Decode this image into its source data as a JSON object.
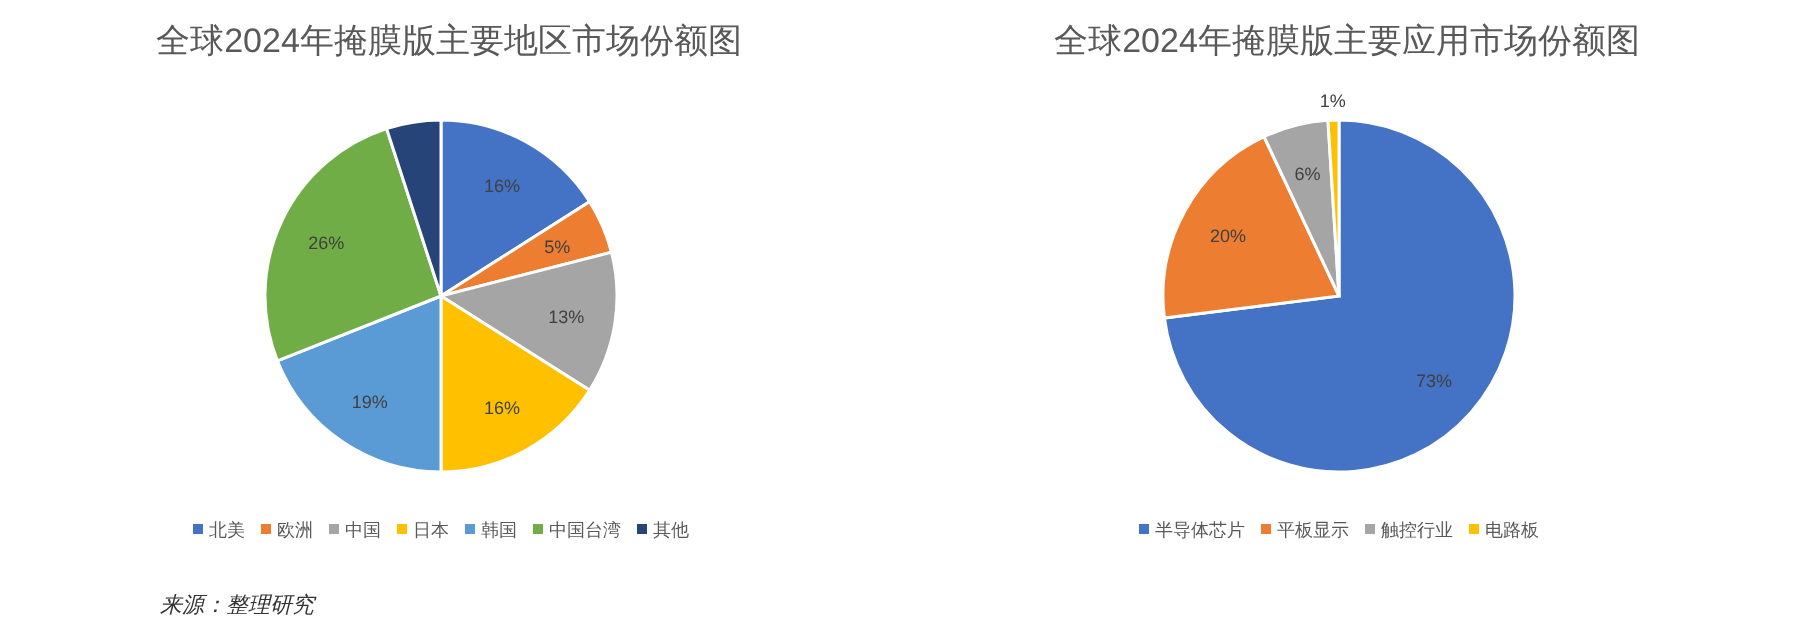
{
  "chart_data": [
    {
      "type": "pie",
      "title": "全球2024年掩膜版主要地区市场份额图",
      "categories": [
        "北美",
        "欧洲",
        "中国",
        "日本",
        "韩国",
        "中国台湾",
        "其他"
      ],
      "values": [
        16,
        5,
        13,
        16,
        19,
        26,
        5
      ],
      "colors": [
        "#4472c4",
        "#ed7d31",
        "#a5a5a5",
        "#ffc000",
        "#5b9bd5",
        "#70ad47",
        "#264478"
      ],
      "value_labels": [
        "16%",
        "5%",
        "13%",
        "16%",
        "19%",
        "26%",
        null
      ],
      "legend": "bottom",
      "annotations": [
        "来源：整理研究"
      ]
    },
    {
      "type": "pie",
      "title": "全球2024年掩膜版主要应用市场份额图",
      "categories": [
        "半导体芯片",
        "平板显示",
        "触控行业",
        "电路板"
      ],
      "values": [
        73,
        20,
        6,
        1
      ],
      "colors": [
        "#4472c4",
        "#ed7d31",
        "#a5a5a5",
        "#ffc000"
      ],
      "value_labels": [
        "73%",
        "20%",
        "6%",
        "1%"
      ],
      "legend": "bottom"
    }
  ]
}
